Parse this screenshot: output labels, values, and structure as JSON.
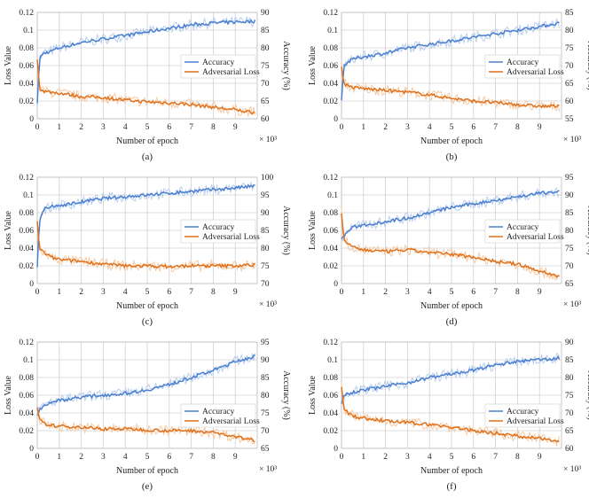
{
  "colors": {
    "accuracy": "#4a7fcf",
    "accuracy_light": "#b8cff0",
    "loss": "#e0701a",
    "loss_light": "#f7c9a2"
  },
  "chart_data": [
    {
      "type": "line",
      "caption": "(a)",
      "xlabel": "Number of epoch",
      "x_multiplier": "× 10³",
      "ylabel": "Loss Value",
      "y2label": "Accuracy (%)",
      "x_ticks": [
        0,
        1,
        2,
        3,
        4,
        5,
        6,
        7,
        8,
        9
      ],
      "xlim": [
        0,
        10
      ],
      "ylim": [
        0,
        0.12
      ],
      "y_ticks": [
        "0",
        "0.02",
        "0.04",
        "0.06",
        "0.08",
        "0.1",
        "0.12"
      ],
      "y2lim": [
        60,
        90
      ],
      "y2_ticks": [
        "60",
        "65",
        "70",
        "75",
        "80",
        "85",
        "90"
      ],
      "legend": "right-middle",
      "grid": true,
      "series": [
        {
          "name": "Accuracy",
          "axis": "right",
          "x": [
            0,
            0.1,
            0.3,
            0.6,
            1,
            2,
            3,
            4,
            5,
            6,
            7,
            8,
            9,
            9.9
          ],
          "y": [
            64,
            77,
            78.5,
            79,
            80,
            81.5,
            82.5,
            83.5,
            84.5,
            85.5,
            86.5,
            87,
            87.3,
            87.5
          ]
        },
        {
          "name": "Adversarial Loss",
          "axis": "left",
          "x": [
            0,
            0.1,
            0.3,
            0.6,
            1,
            2,
            3,
            4,
            5,
            6,
            7,
            8,
            9,
            9.9
          ],
          "y": [
            0.068,
            0.035,
            0.031,
            0.03,
            0.029,
            0.025,
            0.024,
            0.021,
            0.019,
            0.018,
            0.016,
            0.013,
            0.01,
            0.007
          ]
        }
      ]
    },
    {
      "type": "line",
      "caption": "(b)",
      "xlabel": "Number of epoch",
      "x_multiplier": "× 10³",
      "ylabel": "Loss Value",
      "y2label": "Accuracy (%)",
      "x_ticks": [
        0,
        1,
        2,
        3,
        4,
        5,
        6,
        7,
        8,
        9
      ],
      "xlim": [
        0,
        10
      ],
      "ylim": [
        0,
        0.12
      ],
      "y_ticks": [
        "0",
        "0.02",
        "0.04",
        "0.06",
        "0.08",
        "0.1",
        "0.12"
      ],
      "y2lim": [
        55,
        85
      ],
      "y2_ticks": [
        "55",
        "60",
        "65",
        "70",
        "75",
        "80",
        "85"
      ],
      "legend": "right-middle",
      "grid": true,
      "series": [
        {
          "name": "Accuracy",
          "axis": "right",
          "x": [
            0,
            0.1,
            0.3,
            0.6,
            1,
            2,
            3,
            4,
            5,
            6,
            7,
            8,
            9,
            9.9
          ],
          "y": [
            60,
            70,
            71,
            72,
            72.5,
            73.5,
            75,
            76,
            77,
            78,
            79,
            80,
            81,
            82
          ]
        },
        {
          "name": "Adversarial Loss",
          "axis": "left",
          "x": [
            0,
            0.1,
            0.3,
            0.6,
            1,
            2,
            3,
            4,
            5,
            6,
            7,
            8,
            9,
            9.9
          ],
          "y": [
            0.06,
            0.04,
            0.037,
            0.035,
            0.034,
            0.032,
            0.03,
            0.027,
            0.023,
            0.02,
            0.018,
            0.016,
            0.014,
            0.014
          ]
        }
      ]
    },
    {
      "type": "line",
      "caption": "(c)",
      "xlabel": "Number of epoch",
      "x_multiplier": "× 10³",
      "ylabel": "Loss Value",
      "y2label": "Accuracy (%)",
      "x_ticks": [
        0,
        1,
        2,
        3,
        4,
        5,
        6,
        7,
        8,
        9
      ],
      "xlim": [
        0,
        10
      ],
      "ylim": [
        0,
        0.12
      ],
      "y_ticks": [
        "0",
        "0.02",
        "0.04",
        "0.06",
        "0.08",
        "0.1",
        "0.12"
      ],
      "y2lim": [
        70,
        100
      ],
      "y2_ticks": [
        "70",
        "75",
        "80",
        "85",
        "90",
        "95",
        "100"
      ],
      "legend": "right-middle",
      "grid": true,
      "series": [
        {
          "name": "Accuracy",
          "axis": "right",
          "x": [
            0,
            0.1,
            0.3,
            0.6,
            1,
            2,
            3,
            4,
            5,
            6,
            7,
            8,
            9,
            9.9
          ],
          "y": [
            75,
            88,
            91,
            91.5,
            92,
            93,
            94,
            94.5,
            95,
            95.5,
            96,
            96.5,
            97,
            97.5
          ]
        },
        {
          "name": "Adversarial Loss",
          "axis": "left",
          "x": [
            0,
            0.1,
            0.3,
            0.6,
            1,
            2,
            3,
            4,
            5,
            6,
            7,
            8,
            9,
            9.9
          ],
          "y": [
            0.07,
            0.04,
            0.035,
            0.03,
            0.027,
            0.025,
            0.022,
            0.02,
            0.02,
            0.019,
            0.02,
            0.02,
            0.02,
            0.021
          ]
        }
      ]
    },
    {
      "type": "line",
      "caption": "(d)",
      "xlabel": "Number of epoch",
      "x_multiplier": "× 10³",
      "ylabel": "Loss Value",
      "y2label": "Accuracy (%)",
      "x_ticks": [
        0,
        1,
        2,
        3,
        4,
        5,
        6,
        7,
        8,
        9
      ],
      "xlim": [
        0,
        10
      ],
      "ylim": [
        0,
        0.12
      ],
      "y_ticks": [
        "0",
        "0.02",
        "0.04",
        "0.06",
        "0.08",
        "0.1",
        "0.12"
      ],
      "y2lim": [
        65,
        95
      ],
      "y2_ticks": [
        "65",
        "70",
        "75",
        "80",
        "85",
        "90",
        "95"
      ],
      "legend": "right-middle",
      "grid": true,
      "series": [
        {
          "name": "Accuracy",
          "axis": "right",
          "x": [
            0,
            0.1,
            0.3,
            0.6,
            1,
            2,
            3,
            4,
            5,
            6,
            7,
            8,
            9,
            9.9
          ],
          "y": [
            78,
            78,
            80,
            81,
            81.5,
            82.5,
            83.5,
            85,
            86.5,
            87.5,
            88.5,
            89.5,
            90.5,
            91
          ]
        },
        {
          "name": "Adversarial Loss",
          "axis": "left",
          "x": [
            0,
            0.1,
            0.3,
            0.6,
            1,
            2,
            3,
            4,
            5,
            6,
            7,
            8,
            9,
            9.9
          ],
          "y": [
            0.08,
            0.05,
            0.045,
            0.04,
            0.038,
            0.036,
            0.038,
            0.035,
            0.033,
            0.03,
            0.025,
            0.022,
            0.014,
            0.008
          ]
        }
      ]
    },
    {
      "type": "line",
      "caption": "(e)",
      "xlabel": "Number of epoch",
      "x_multiplier": "× 10³",
      "ylabel": "Loss Value",
      "y2label": "Accuracy (%)",
      "x_ticks": [
        0,
        1,
        2,
        3,
        4,
        5,
        6,
        7,
        8,
        9
      ],
      "xlim": [
        0,
        10
      ],
      "ylim": [
        0,
        0.12
      ],
      "y_ticks": [
        "0",
        "0.02",
        "0.04",
        "0.06",
        "0.08",
        "0.1",
        "0.12"
      ],
      "y2lim": [
        65,
        95
      ],
      "y2_ticks": [
        "65",
        "70",
        "75",
        "80",
        "85",
        "90",
        "95"
      ],
      "legend": "right-bottom",
      "grid": true,
      "series": [
        {
          "name": "Accuracy",
          "axis": "right",
          "x": [
            0,
            0.1,
            0.3,
            0.6,
            1,
            2,
            3,
            4,
            5,
            6,
            7,
            8,
            9,
            9.9
          ],
          "y": [
            74,
            76,
            77,
            78,
            78.5,
            79.5,
            80,
            80.5,
            81.5,
            83,
            85,
            87,
            89.5,
            91
          ]
        },
        {
          "name": "Adversarial Loss",
          "axis": "left",
          "x": [
            0,
            0.1,
            0.3,
            0.6,
            1,
            2,
            3,
            4,
            5,
            6,
            7,
            8,
            9,
            9.9
          ],
          "y": [
            0.045,
            0.032,
            0.028,
            0.026,
            0.025,
            0.024,
            0.022,
            0.022,
            0.021,
            0.02,
            0.02,
            0.018,
            0.013,
            0.009
          ]
        }
      ]
    },
    {
      "type": "line",
      "caption": "(f)",
      "xlabel": "Number of epoch",
      "x_multiplier": "× 10³",
      "ylabel": "Loss Value",
      "y2label": "Accuracy (%)",
      "x_ticks": [
        0,
        1,
        2,
        3,
        4,
        5,
        6,
        7,
        8,
        9
      ],
      "xlim": [
        0,
        10
      ],
      "ylim": [
        0,
        0.12
      ],
      "y_ticks": [
        "0",
        "0.02",
        "0.04",
        "0.06",
        "0.08",
        "0.1",
        "0.12"
      ],
      "y2lim": [
        60,
        90
      ],
      "y2_ticks": [
        "60",
        "65",
        "70",
        "75",
        "80",
        "85",
        "90"
      ],
      "legend": "right-bottom",
      "grid": true,
      "series": [
        {
          "name": "Accuracy",
          "axis": "right",
          "x": [
            0,
            0.1,
            0.3,
            0.6,
            1,
            2,
            3,
            4,
            5,
            6,
            7,
            8,
            9,
            9.9
          ],
          "y": [
            73,
            75,
            75.5,
            76,
            76.5,
            77.5,
            78.5,
            80,
            81,
            82,
            83.5,
            84.5,
            85,
            85.5
          ]
        },
        {
          "name": "Adversarial Loss",
          "axis": "left",
          "x": [
            0,
            0.1,
            0.3,
            0.6,
            1,
            2,
            3,
            4,
            5,
            6,
            7,
            8,
            9,
            9.9
          ],
          "y": [
            0.07,
            0.045,
            0.04,
            0.036,
            0.034,
            0.031,
            0.029,
            0.027,
            0.024,
            0.02,
            0.017,
            0.014,
            0.011,
            0.009
          ]
        }
      ]
    }
  ]
}
